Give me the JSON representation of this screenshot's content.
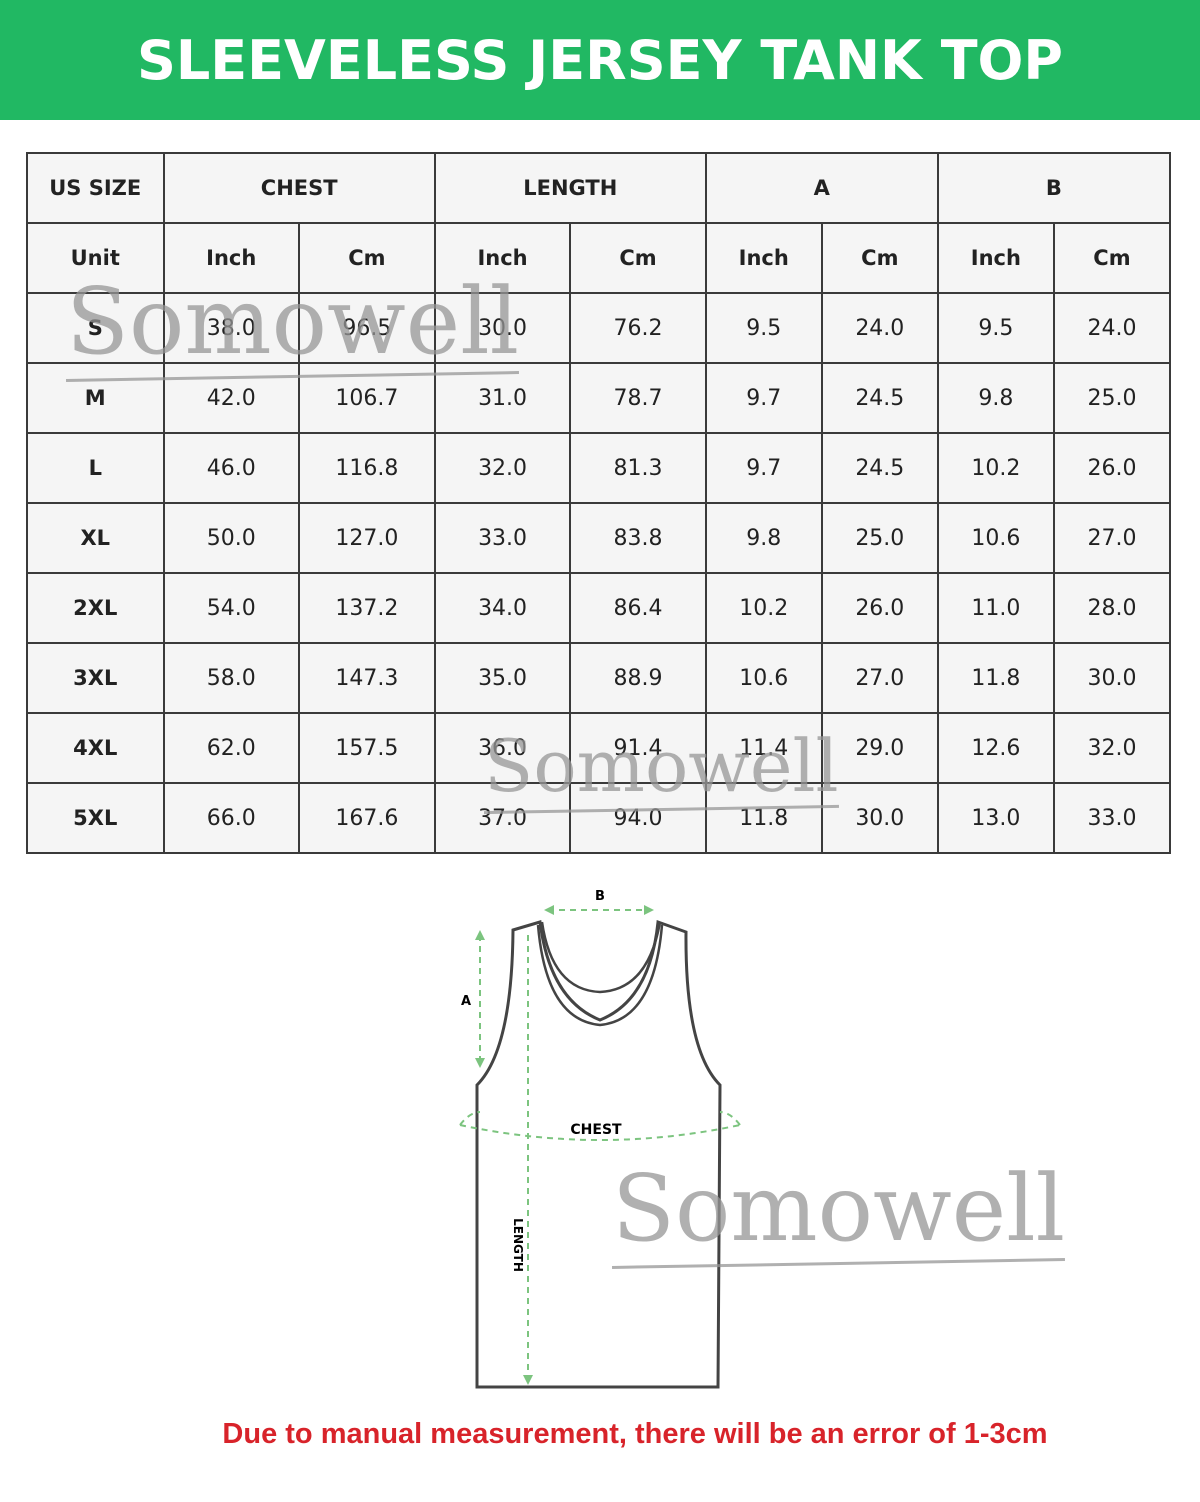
{
  "title": "SLEEVELESS JERSEY TANK TOP",
  "table": {
    "groups": [
      "US SIZE",
      "CHEST",
      "LENGTH",
      "A",
      "B"
    ],
    "units": [
      "Unit",
      "Inch",
      "Cm",
      "Inch",
      "Cm",
      "Inch",
      "Cm",
      "Inch",
      "Cm"
    ],
    "rows": [
      [
        "S",
        "38.0",
        "96.5",
        "30.0",
        "76.2",
        "9.5",
        "24.0",
        "9.5",
        "24.0"
      ],
      [
        "M",
        "42.0",
        "106.7",
        "31.0",
        "78.7",
        "9.7",
        "24.5",
        "9.8",
        "25.0"
      ],
      [
        "L",
        "46.0",
        "116.8",
        "32.0",
        "81.3",
        "9.7",
        "24.5",
        "10.2",
        "26.0"
      ],
      [
        "XL",
        "50.0",
        "127.0",
        "33.0",
        "83.8",
        "9.8",
        "25.0",
        "10.6",
        "27.0"
      ],
      [
        "2XL",
        "54.0",
        "137.2",
        "34.0",
        "86.4",
        "10.2",
        "26.0",
        "11.0",
        "28.0"
      ],
      [
        "3XL",
        "58.0",
        "147.3",
        "35.0",
        "88.9",
        "10.6",
        "27.0",
        "11.8",
        "30.0"
      ],
      [
        "4XL",
        "62.0",
        "157.5",
        "36.0",
        "91.4",
        "11.4",
        "29.0",
        "12.6",
        "32.0"
      ],
      [
        "5XL",
        "66.0",
        "167.6",
        "37.0",
        "94.0",
        "11.8",
        "30.0",
        "13.0",
        "33.0"
      ]
    ]
  },
  "diagram": {
    "b": "B",
    "a": "A",
    "chest": "CHEST",
    "length": "LENGTH"
  },
  "watermark": "Somowell",
  "note": "Due to manual measurement, there will be an error of 1-3cm",
  "colors": {
    "banner": "#21b863",
    "note": "#d8232a",
    "measure": "#7cc47f"
  }
}
